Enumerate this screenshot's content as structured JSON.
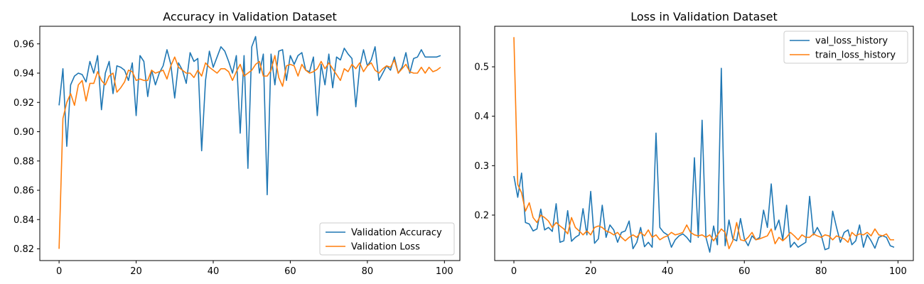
{
  "chart_data": [
    {
      "type": "line",
      "title": "Accuracy in Validation Dataset",
      "xlabel": "",
      "ylabel": "",
      "xlim": [
        -5,
        104
      ],
      "ylim": [
        0.812,
        0.972
      ],
      "xticks": [
        0,
        20,
        40,
        60,
        80,
        100
      ],
      "yticks": [
        0.82,
        0.84,
        0.86,
        0.88,
        0.9,
        0.92,
        0.94,
        0.96
      ],
      "grid": false,
      "legend_position": "lower-right",
      "series": [
        {
          "name": "Validation Accuracy",
          "color": "#1f77b4",
          "x": [
            0,
            1,
            2,
            3,
            4,
            5,
            6,
            7,
            8,
            9,
            10,
            11,
            12,
            13,
            14,
            15,
            16,
            17,
            18,
            19,
            20,
            21,
            22,
            23,
            24,
            25,
            26,
            27,
            28,
            29,
            30,
            31,
            32,
            33,
            34,
            35,
            36,
            37,
            38,
            39,
            40,
            41,
            42,
            43,
            44,
            45,
            46,
            47,
            48,
            49,
            50,
            51,
            52,
            53,
            54,
            55,
            56,
            57,
            58,
            59,
            60,
            61,
            62,
            63,
            64,
            65,
            66,
            67,
            68,
            69,
            70,
            71,
            72,
            73,
            74,
            75,
            76,
            77,
            78,
            79,
            80,
            81,
            82,
            83,
            84,
            85,
            86,
            87,
            88,
            89,
            90,
            91,
            92,
            93,
            94,
            95,
            96,
            97,
            98,
            99
          ],
          "values": [
            0.918,
            0.943,
            0.89,
            0.932,
            0.938,
            0.94,
            0.939,
            0.934,
            0.948,
            0.94,
            0.952,
            0.915,
            0.94,
            0.948,
            0.926,
            0.945,
            0.944,
            0.942,
            0.935,
            0.947,
            0.911,
            0.952,
            0.948,
            0.924,
            0.942,
            0.932,
            0.94,
            0.945,
            0.956,
            0.946,
            0.923,
            0.947,
            0.942,
            0.933,
            0.954,
            0.948,
            0.95,
            0.887,
            0.935,
            0.955,
            0.944,
            0.951,
            0.958,
            0.955,
            0.948,
            0.94,
            0.952,
            0.899,
            0.952,
            0.875,
            0.958,
            0.965,
            0.94,
            0.953,
            0.857,
            0.953,
            0.932,
            0.955,
            0.956,
            0.935,
            0.952,
            0.946,
            0.952,
            0.954,
            0.942,
            0.941,
            0.951,
            0.911,
            0.946,
            0.932,
            0.953,
            0.93,
            0.951,
            0.949,
            0.957,
            0.953,
            0.95,
            0.917,
            0.944,
            0.956,
            0.945,
            0.949,
            0.958,
            0.935,
            0.94,
            0.945,
            0.942,
            0.951,
            0.94,
            0.944,
            0.954,
            0.94,
            0.95,
            0.951,
            0.956,
            0.951,
            0.951,
            0.951,
            0.951,
            0.952
          ]
        },
        {
          "name": "Validation Loss",
          "color": "#ff7f0e",
          "x": [
            0,
            1,
            2,
            3,
            4,
            5,
            6,
            7,
            8,
            9,
            10,
            11,
            12,
            13,
            14,
            15,
            16,
            17,
            18,
            19,
            20,
            21,
            22,
            23,
            24,
            25,
            26,
            27,
            28,
            29,
            30,
            31,
            32,
            33,
            34,
            35,
            36,
            37,
            38,
            39,
            40,
            41,
            42,
            43,
            44,
            45,
            46,
            47,
            48,
            49,
            50,
            51,
            52,
            53,
            54,
            55,
            56,
            57,
            58,
            59,
            60,
            61,
            62,
            63,
            64,
            65,
            66,
            67,
            68,
            69,
            70,
            71,
            72,
            73,
            74,
            75,
            76,
            77,
            78,
            79,
            80,
            81,
            82,
            83,
            84,
            85,
            86,
            87,
            88,
            89,
            90,
            91,
            92,
            93,
            94,
            95,
            96,
            97,
            98,
            99
          ],
          "values": [
            0.82,
            0.909,
            0.92,
            0.926,
            0.918,
            0.932,
            0.935,
            0.921,
            0.933,
            0.933,
            0.941,
            0.935,
            0.932,
            0.938,
            0.94,
            0.927,
            0.93,
            0.934,
            0.942,
            0.941,
            0.935,
            0.936,
            0.935,
            0.935,
            0.942,
            0.94,
            0.941,
            0.942,
            0.936,
            0.945,
            0.951,
            0.944,
            0.942,
            0.94,
            0.94,
            0.937,
            0.942,
            0.938,
            0.947,
            0.944,
            0.942,
            0.94,
            0.943,
            0.943,
            0.941,
            0.935,
            0.941,
            0.946,
            0.938,
            0.94,
            0.942,
            0.946,
            0.948,
            0.938,
            0.938,
            0.942,
            0.952,
            0.937,
            0.931,
            0.945,
            0.946,
            0.945,
            0.938,
            0.946,
            0.942,
            0.94,
            0.941,
            0.943,
            0.948,
            0.943,
            0.947,
            0.943,
            0.939,
            0.935,
            0.943,
            0.941,
            0.946,
            0.943,
            0.947,
            0.941,
            0.945,
            0.947,
            0.942,
            0.94,
            0.943,
            0.945,
            0.944,
            0.949,
            0.94,
            0.943,
            0.946,
            0.941,
            0.94,
            0.94,
            0.944,
            0.94,
            0.944,
            0.941,
            0.942,
            0.944
          ]
        }
      ]
    },
    {
      "type": "line",
      "title": "Loss in Validation Dataset",
      "xlabel": "",
      "ylabel": "",
      "xlim": [
        -5,
        104
      ],
      "ylim": [
        0.108,
        0.582
      ],
      "xticks": [
        0,
        20,
        40,
        60,
        80,
        100
      ],
      "yticks": [
        0.2,
        0.3,
        0.4,
        0.5
      ],
      "grid": false,
      "legend_position": "upper-right",
      "series": [
        {
          "name": "val_loss_history",
          "color": "#1f77b4",
          "x": [
            0,
            1,
            2,
            3,
            4,
            5,
            6,
            7,
            8,
            9,
            10,
            11,
            12,
            13,
            14,
            15,
            16,
            17,
            18,
            19,
            20,
            21,
            22,
            23,
            24,
            25,
            26,
            27,
            28,
            29,
            30,
            31,
            32,
            33,
            34,
            35,
            36,
            37,
            38,
            39,
            40,
            41,
            42,
            43,
            44,
            45,
            46,
            47,
            48,
            49,
            50,
            51,
            52,
            53,
            54,
            55,
            56,
            57,
            58,
            59,
            60,
            61,
            62,
            63,
            64,
            65,
            66,
            67,
            68,
            69,
            70,
            71,
            72,
            73,
            74,
            75,
            76,
            77,
            78,
            79,
            80,
            81,
            82,
            83,
            84,
            85,
            86,
            87,
            88,
            89,
            90,
            91,
            92,
            93,
            94,
            95,
            96,
            97,
            98,
            99
          ],
          "values": [
            0.279,
            0.236,
            0.285,
            0.185,
            0.182,
            0.168,
            0.172,
            0.212,
            0.17,
            0.175,
            0.167,
            0.223,
            0.145,
            0.148,
            0.209,
            0.147,
            0.155,
            0.16,
            0.213,
            0.16,
            0.248,
            0.143,
            0.152,
            0.22,
            0.155,
            0.18,
            0.17,
            0.145,
            0.165,
            0.168,
            0.188,
            0.132,
            0.145,
            0.175,
            0.136,
            0.145,
            0.135,
            0.366,
            0.175,
            0.165,
            0.16,
            0.135,
            0.15,
            0.158,
            0.162,
            0.155,
            0.145,
            0.316,
            0.155,
            0.392,
            0.155,
            0.125,
            0.178,
            0.14,
            0.497,
            0.138,
            0.19,
            0.152,
            0.148,
            0.193,
            0.152,
            0.138,
            0.158,
            0.15,
            0.155,
            0.21,
            0.175,
            0.263,
            0.17,
            0.19,
            0.15,
            0.22,
            0.135,
            0.145,
            0.135,
            0.14,
            0.145,
            0.238,
            0.16,
            0.175,
            0.16,
            0.13,
            0.133,
            0.208,
            0.175,
            0.145,
            0.165,
            0.17,
            0.14,
            0.148,
            0.18,
            0.135,
            0.16,
            0.148,
            0.133,
            0.155,
            0.158,
            0.155,
            0.138,
            0.135
          ]
        },
        {
          "name": "train_loss_history",
          "color": "#ff7f0e",
          "x": [
            0,
            1,
            2,
            3,
            4,
            5,
            6,
            7,
            8,
            9,
            10,
            11,
            12,
            13,
            14,
            15,
            16,
            17,
            18,
            19,
            20,
            21,
            22,
            23,
            24,
            25,
            26,
            27,
            28,
            29,
            30,
            31,
            32,
            33,
            34,
            35,
            36,
            37,
            38,
            39,
            40,
            41,
            42,
            43,
            44,
            45,
            46,
            47,
            48,
            49,
            50,
            51,
            52,
            53,
            54,
            55,
            56,
            57,
            58,
            59,
            60,
            61,
            62,
            63,
            64,
            65,
            66,
            67,
            68,
            69,
            70,
            71,
            72,
            73,
            74,
            75,
            76,
            77,
            78,
            79,
            80,
            81,
            82,
            83,
            84,
            85,
            86,
            87,
            88,
            89,
            90,
            91,
            92,
            93,
            94,
            95,
            96,
            97,
            98,
            99
          ],
          "values": [
            0.56,
            0.262,
            0.245,
            0.208,
            0.225,
            0.195,
            0.185,
            0.2,
            0.195,
            0.188,
            0.175,
            0.185,
            0.178,
            0.172,
            0.162,
            0.195,
            0.175,
            0.168,
            0.16,
            0.168,
            0.16,
            0.175,
            0.178,
            0.175,
            0.168,
            0.165,
            0.16,
            0.165,
            0.155,
            0.148,
            0.155,
            0.16,
            0.155,
            0.165,
            0.158,
            0.17,
            0.155,
            0.16,
            0.15,
            0.155,
            0.158,
            0.165,
            0.16,
            0.162,
            0.165,
            0.18,
            0.165,
            0.16,
            0.158,
            0.16,
            0.155,
            0.16,
            0.148,
            0.16,
            0.172,
            0.165,
            0.132,
            0.148,
            0.185,
            0.15,
            0.148,
            0.155,
            0.165,
            0.15,
            0.152,
            0.155,
            0.158,
            0.172,
            0.142,
            0.155,
            0.148,
            0.155,
            0.165,
            0.158,
            0.15,
            0.16,
            0.155,
            0.155,
            0.162,
            0.158,
            0.155,
            0.16,
            0.158,
            0.15,
            0.158,
            0.155,
            0.152,
            0.145,
            0.165,
            0.158,
            0.162,
            0.16,
            0.165,
            0.158,
            0.172,
            0.16,
            0.158,
            0.162,
            0.15,
            0.15
          ]
        }
      ]
    }
  ]
}
